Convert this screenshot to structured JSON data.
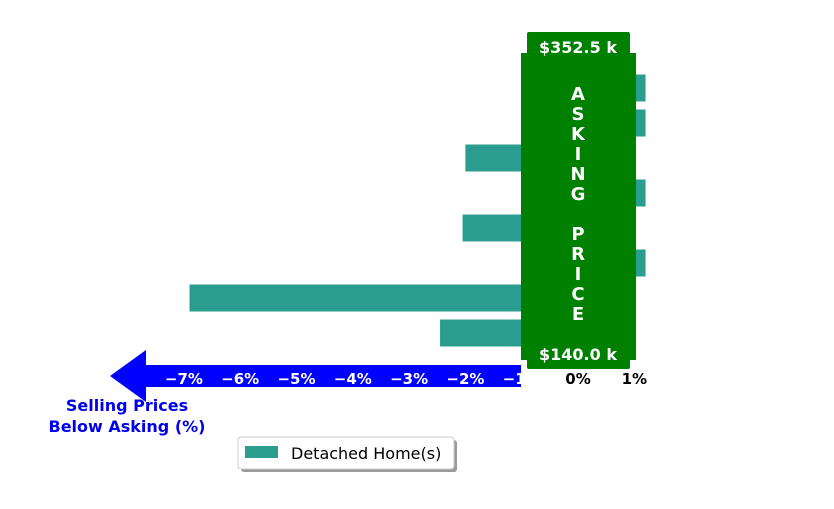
{
  "chart_data": {
    "type": "bar",
    "orientation": "horizontal",
    "series": [
      {
        "name": "Detached Home(s)",
        "values": [
          1.2,
          1.2,
          -2.0,
          1.2,
          -2.05,
          1.2,
          -6.9,
          -2.45
        ]
      }
    ],
    "xlim": [
      -8.2,
      1.7
    ],
    "x_ticks": [
      -7,
      -6,
      -5,
      -4,
      -3,
      -2,
      -1,
      0,
      1
    ],
    "x_tick_labels": [
      "−7%",
      "−6%",
      "−5%",
      "−4%",
      "−3%",
      "−2%",
      "−1%",
      "0%",
      "1%"
    ],
    "grid": false,
    "legend": "bottom-center",
    "colors": {
      "bar": "#2a9d8f",
      "asking_band": "#008000",
      "arrow": "#0000ff",
      "caption": "#0000ee"
    },
    "asking_price": {
      "vertical_text": "ASKING PRICE",
      "high_label": "$352.5 k",
      "low_label": "$140.0 k"
    },
    "arrow_caption": [
      "Selling Prices",
      "Below Asking (%)"
    ]
  }
}
